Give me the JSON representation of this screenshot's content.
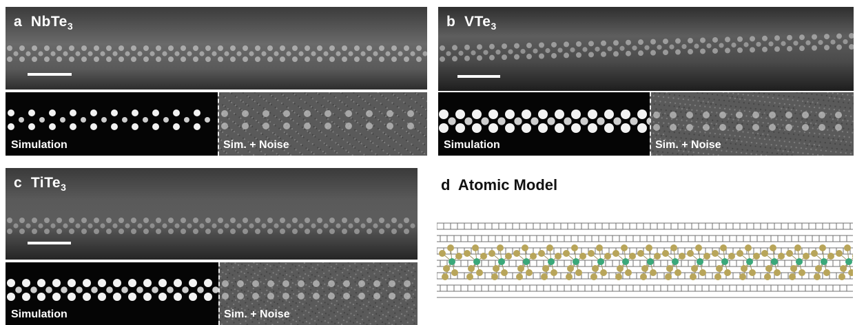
{
  "panels": {
    "a": {
      "letter": "a",
      "material": "NbTe",
      "subscript": "3"
    },
    "b": {
      "letter": "b",
      "material": "VTe",
      "subscript": "3"
    },
    "c": {
      "letter": "c",
      "material": "TiTe",
      "subscript": "3"
    },
    "d": {
      "letter": "d",
      "title": "Atomic Model"
    }
  },
  "sublabels": {
    "simulation": "Simulation",
    "noise": "Sim. + Noise"
  },
  "colors": {
    "carbon_lattice": "#6f6f6f",
    "tellurium": "#b8a55a",
    "metal": "#3aa87a"
  }
}
